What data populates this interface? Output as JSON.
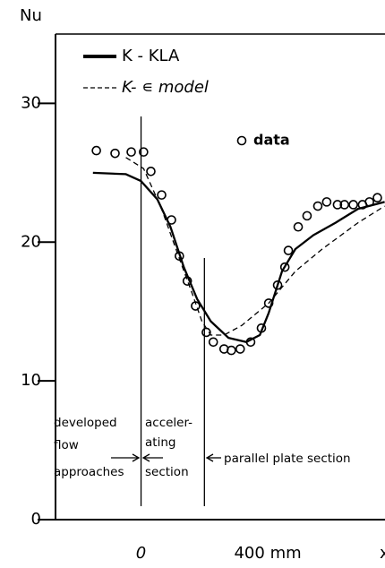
{
  "chart_data": {
    "type": "line",
    "y_label": "Nu",
    "x_label": "x",
    "xlim": [
      -270,
      770
    ],
    "ylim": [
      0,
      35
    ],
    "xticks": [
      0,
      {
        "value": 400,
        "label": "400 mm"
      }
    ],
    "yticks": [
      0,
      10,
      20,
      30
    ],
    "boundaries": [
      0,
      200
    ],
    "series": [
      {
        "name": "K - KLA",
        "style": "solid",
        "color": "#000000",
        "x": [
          -152,
          -48,
          0,
          51,
          93,
          135,
          177,
          220,
          276,
          332,
          375,
          403,
          445,
          487,
          544,
          614,
          685,
          769
        ],
        "values": [
          25,
          24.9,
          24.4,
          23.1,
          21.1,
          18.2,
          15.9,
          14.3,
          13.1,
          12.8,
          13.3,
          14.9,
          17.9,
          19.5,
          20.5,
          21.4,
          22.4,
          22.9
        ]
      },
      {
        "name": "K- ∊ model",
        "style": "dashed",
        "color": "#000000",
        "x": [
          -48,
          8,
          65,
          121,
          163,
          192,
          220,
          262,
          318,
          403,
          487,
          572,
          685,
          769
        ],
        "values": [
          26.1,
          25.3,
          22.4,
          18.8,
          16.2,
          14.3,
          13.3,
          13.3,
          14.0,
          15.6,
          17.9,
          19.5,
          21.4,
          22.6
        ]
      },
      {
        "name": "data",
        "style": "markers",
        "color": "#000000",
        "x": [
          -141,
          -82,
          -31,
          8,
          31,
          65,
          96,
          121,
          146,
          172,
          206,
          228,
          262,
          285,
          313,
          346,
          380,
          403,
          431,
          454,
          465,
          496,
          524,
          558,
          586,
          620,
          642,
          670,
          699,
          721,
          746
        ],
        "values": [
          26.6,
          26.4,
          26.5,
          26.5,
          25.1,
          23.4,
          21.6,
          19.0,
          17.2,
          15.4,
          13.5,
          12.8,
          12.3,
          12.2,
          12.3,
          12.8,
          13.8,
          15.6,
          16.9,
          18.2,
          19.4,
          21.1,
          21.9,
          22.6,
          22.9,
          22.7,
          22.7,
          22.7,
          22.7,
          22.9,
          23.2
        ]
      }
    ],
    "annotations": [
      {
        "lines": [
          "developed",
          "flow",
          "approaches"
        ]
      },
      {
        "lines": [
          "acceler-",
          "ating",
          "section"
        ]
      },
      {
        "lines": [
          "parallel plate section"
        ]
      }
    ]
  }
}
